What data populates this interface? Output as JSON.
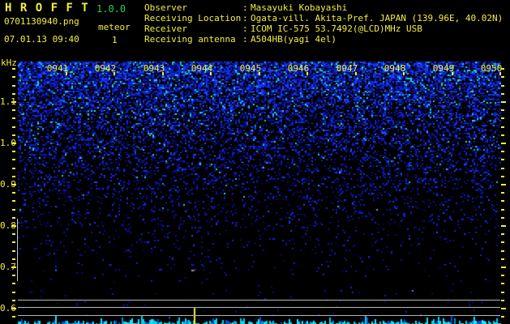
{
  "header": {
    "title": "H R O F F T",
    "version": "1.0.0",
    "filename": "0701130940.png",
    "mode": "meteor",
    "count": "1",
    "datetime": "07.01.13 09:40",
    "info_sep": ":",
    "info": [
      {
        "label": "Observer",
        "value": "Masayuki Kobayashi"
      },
      {
        "label": "Receiving Location",
        "value": "Ogata-vill. Akita-Pref. JAPAN (139.96E, 40.02N)"
      },
      {
        "label": "Receiver",
        "value": "ICOM IC-575 53.7492(@LCD)MHz USB"
      },
      {
        "label": "Receiving antenna",
        "value": "A504HB(yagi 4el)"
      }
    ]
  },
  "spectrogram": {
    "freq_unit": "kHz",
    "freq_labels": [
      "1.1",
      "1.0",
      "0.9",
      "0.8",
      "0.7",
      "0.6"
    ],
    "time_labels": [
      "0941",
      "0942",
      "0943",
      "0944",
      "0945",
      "0946",
      "0947",
      "0948",
      "0949",
      "0950"
    ],
    "colors": {
      "label_yellow": "#f2ee42",
      "version_green": "#25cf52",
      "noise_blue": "#0c1ed0",
      "noise_cyan": "#2ad4f8",
      "level_bar_cyan": "#00d4f0",
      "meteor_marker_yellow": "#f2ee42",
      "echo_red": "#ff3344",
      "grid_gray": "#b5b8b8"
    }
  }
}
